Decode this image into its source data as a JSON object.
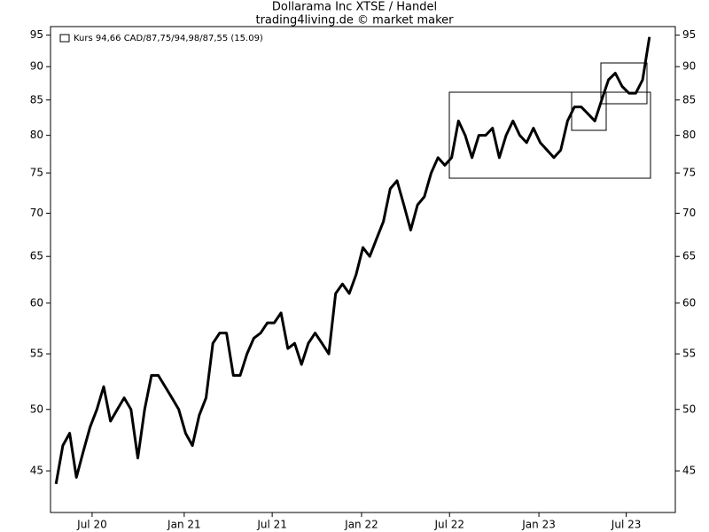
{
  "chart_data": {
    "type": "line",
    "title": "Dollarama Inc XTSE / Handel",
    "subtitle": "trading4living.de © market maker",
    "legend_label": "Kurs 94,66 CAD/87,75/94,98/87,55 (15.09)",
    "log_scale": true,
    "color": "#000000",
    "values": [
      44,
      47,
      48,
      44.5,
      46.5,
      48.5,
      50,
      52,
      49,
      50,
      51,
      50,
      46,
      50,
      53,
      53,
      52,
      51,
      50,
      48,
      47,
      49.5,
      51,
      56,
      57,
      57,
      53,
      53,
      55,
      56.5,
      57,
      58,
      58,
      59,
      55.5,
      56,
      54,
      56,
      57,
      56,
      55,
      61,
      62,
      61,
      63,
      66,
      65,
      67,
      69,
      73,
      74,
      71,
      68,
      71,
      72,
      75,
      77,
      76,
      77,
      82,
      80,
      77,
      80,
      80,
      81,
      77,
      80,
      82,
      80,
      79,
      81,
      79,
      78,
      77,
      78,
      82,
      84,
      84,
      83,
      82,
      85,
      88,
      89,
      87,
      86,
      86,
      88,
      94.7
    ],
    "xlim": [
      -0.8,
      90.8
    ],
    "xticks": [
      {
        "value": 5.3,
        "label": "Jul 20"
      },
      {
        "value": 18.8,
        "label": "Jan 21"
      },
      {
        "value": 31.7,
        "label": "Jul 21"
      },
      {
        "value": 44.8,
        "label": "Jan 22"
      },
      {
        "value": 57.7,
        "label": "Jul 22"
      },
      {
        "value": 70.8,
        "label": "Jan 23"
      },
      {
        "value": 83.6,
        "label": "Jul 23"
      }
    ],
    "ylim": [
      41.9,
      96.4
    ],
    "yticks": [
      45,
      50,
      55,
      60,
      65,
      70,
      75,
      80,
      85,
      90,
      95
    ]
  }
}
